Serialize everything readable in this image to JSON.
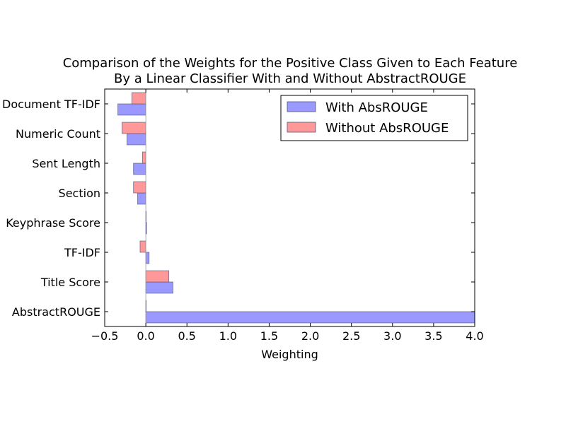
{
  "chart_data": {
    "type": "bar",
    "orientation": "horizontal",
    "title": "Comparison of the Weights for the Positive Class Given to Each Feature",
    "subtitle": "By a Linear Classifier With and Without AbstractROUGE",
    "xlabel": "Weighting",
    "ylabel": "",
    "xlim": [
      -0.5,
      4.0
    ],
    "xticks": [
      "−0.5",
      "0.0",
      "0.5",
      "1.0",
      "1.5",
      "2.0",
      "2.5",
      "3.0",
      "3.5",
      "4.0"
    ],
    "categories": [
      "Document TF-IDF",
      "Numeric Count",
      "Sent Length",
      "Section",
      "Keyphrase Score",
      "TF-IDF",
      "Title Score",
      "AbstractROUGE"
    ],
    "series": [
      {
        "name": "With AbsROUGE",
        "color": "#9999ff",
        "values": [
          -0.34,
          -0.23,
          -0.15,
          -0.1,
          0.01,
          0.04,
          0.33,
          4.0
        ]
      },
      {
        "name": "Without AbsROUGE",
        "color": "#ff9999",
        "values": [
          -0.17,
          -0.29,
          -0.04,
          -0.15,
          0.0,
          -0.07,
          0.28,
          0.0
        ]
      }
    ],
    "legend_position": "top-right",
    "grid": false
  }
}
